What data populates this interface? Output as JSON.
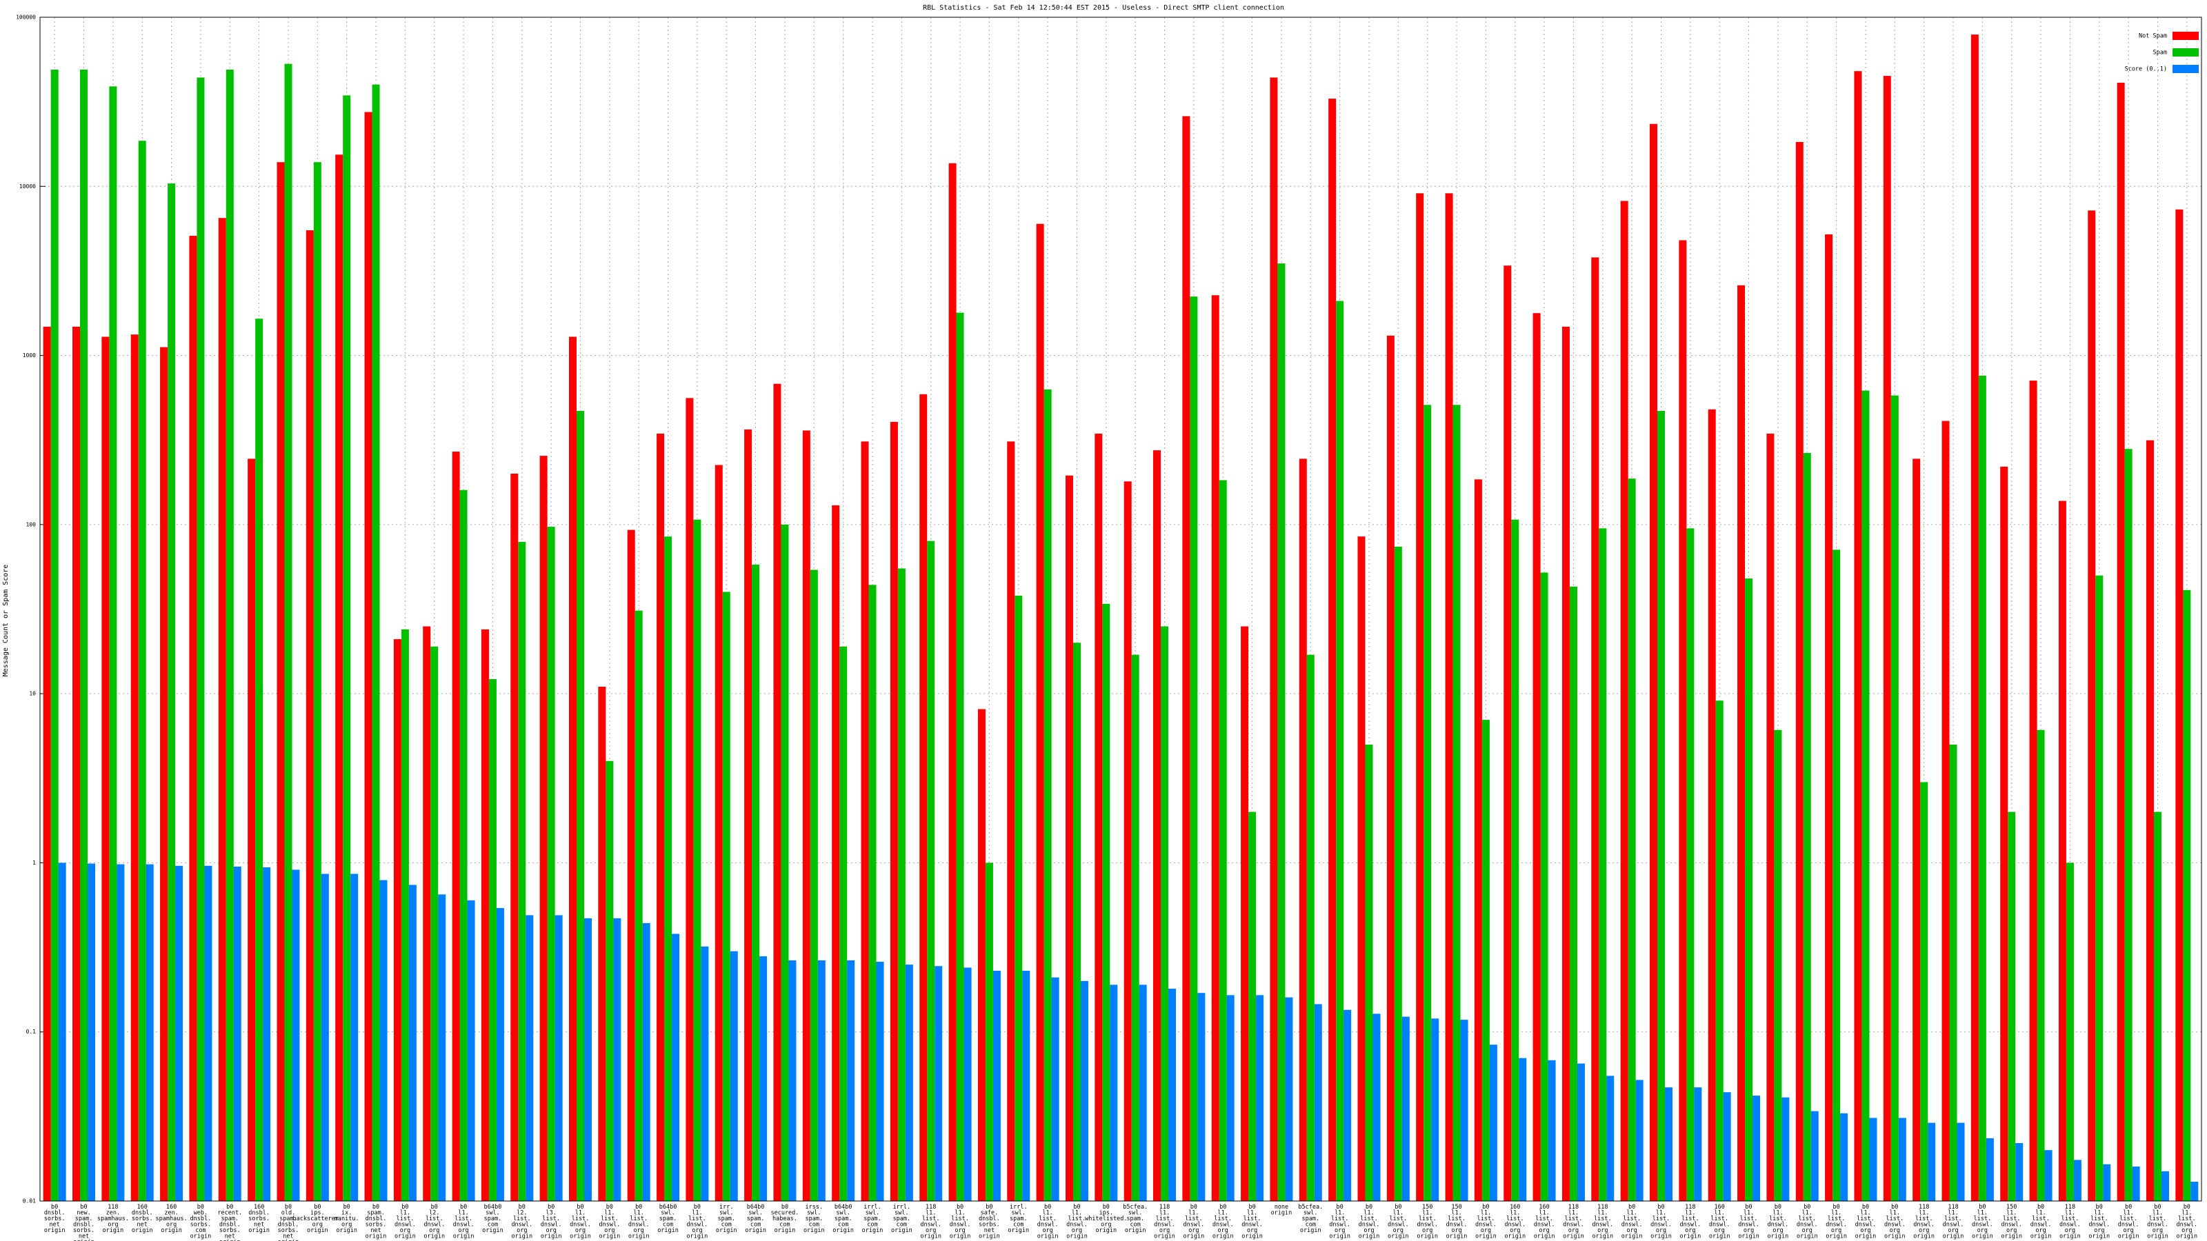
{
  "chart_data": {
    "type": "bar",
    "title": "RBL Statistics - Sat Feb 14 12:50:44 EST 2015 - Useless - Direct SMTP client connection",
    "y_label": "Message Count or Spam Score",
    "log_scale": true,
    "grid": true,
    "legend": "top-right",
    "ylim": [
      0.01,
      100000
    ],
    "yticks": [
      0.01,
      0.1,
      1,
      10,
      100,
      1000,
      10000,
      100000
    ],
    "categories": [
      "b0\ndnsbl.\nsorbs.\nnet\norigin",
      "b0\nnew.\nspam.\ndnsbl.\nsorbs.\nnet\norigin",
      "118\nzen.\nspamhaus.\norg\norigin",
      "160\ndnsbl.\nsorbs.\nnet\norigin",
      "160\nzen.\nspamhaus.\norg\norigin",
      "b0\nweb.\ndnsbl.\nsorbs.\ncom\norigin",
      "b0\nrecent.\nspam.\ndnsbl.\nsorbs.\nnet\norigin",
      "160\ndnsbl.\nsorbs.\nnet\norigin",
      "b0\nold.\nspam.\ndnsbl.\nsorbs.\nnet\norigin",
      "b0\nips.\nbackscatterer.\norg\norigin",
      "b0\nix.\nmanitu.\norg\norigin",
      "b0\nspam.\ndnsbl.\nsorbs.\nnet\norigin",
      "b0\nl1.\nlist.\ndnswl.\norg\norigin",
      "b0\nl2.\nlist.\ndnswl.\norg\norigin",
      "b0\nl1.\nlist.\ndnswl.\norg\norigin",
      "b64b0\nswl.\nspam.\ncom\norigin",
      "b0\nl2.\nlist.\ndnswl.\norg\norigin",
      "b0\nl3.\nlist.\ndnswl.\norg\norigin",
      "b0\nl1.\nlist.\ndnswl.\norg\norigin",
      "b0\nl1.\nlist.\ndnswl.\norg\norigin",
      "b0\nl1.\nlist.\ndnswl.\norg\norigin",
      "b64b0\nswl.\nspam.\ncom\norigin",
      "b0\nl1.\nlist.\ndnswl.\norg\norigin",
      "irr.\nswl.\nspam.\ncom\norigin",
      "b64b0\nswl.\nspam.\ncom\norigin",
      "b0\nsecured.\nhabeas.\ncom\norigin",
      "irss.\nswl.\nspam.\ncom\norigin",
      "b64b0\nswl.\nspam.\ncom\norigin",
      "irrl.\nswl.\nspam.\ncom\norigin",
      "irrl.\nswl.\nspam.\ncom\norigin",
      "118\nl1.\nlist.\ndnswl.\norg\norigin",
      "b0\nl1.\nlist.\ndnswl.\norg\norigin",
      "b0\nsafe.\ndnsbl.\nsorbs.\nnet\norigin",
      "irrl.\nswl.\nspam.\ncom\norigin",
      "b0\nl1.\nlist.\ndnswl.\norg\norigin",
      "b0\nl1.\nlist.\ndnswl.\norg\norigin",
      "b0\nips.\nwhitelisted.\norg\norigin",
      "b5cfea.\nswl.\nspam.\ncom\norigin",
      "118\nl1.\nlist.\ndnswl.\norg\norigin",
      "b0\nl1.\nlist.\ndnswl.\norg\norigin",
      "b0\nl1.\nlist.\ndnswl.\norg\norigin",
      "b0\nl1.\nlist.\ndnswl.\norg\norigin",
      "none\norigin",
      "b5cfea.\nswl.\nspam.\ncom\norigin",
      "b0\nl1.\nlist.\ndnswl.\norg\norigin",
      "b0\nl1.\nlist.\ndnswl.\norg\norigin",
      "b0\nl1.\nlist.\ndnswl.\norg\norigin",
      "150\nl1.\nlist.\ndnswl.\norg\norigin",
      "150\nl1.\nlist.\ndnswl.\norg\norigin",
      "b0\nl1.\nlist.\ndnswl.\norg\norigin",
      "160\nl1.\nlist.\ndnswl.\norg\norigin",
      "160\nl1.\nlist.\ndnswl.\norg\norigin",
      "118\nl1.\nlist.\ndnswl.\norg\norigin",
      "118\nl1.\nlist.\ndnswl.\norg\norigin",
      "b0\nl1.\nlist.\ndnswl.\norg\norigin",
      "b0\nl1.\nlist.\ndnswl.\norg\norigin",
      "118\nl1.\nlist.\ndnswl.\norg\norigin",
      "160\nl1.\nlist.\ndnswl.\norg\norigin",
      "b0\nl1.\nlist.\ndnswl.\norg\norigin",
      "b0\nl1.\nlist.\ndnswl.\norg\norigin",
      "b0\nl1.\nlist.\ndnswl.\norg\norigin",
      "b0\nl1.\nlist.\ndnswl.\norg\norigin",
      "b0\nl1.\nlist.\ndnswl.\norg\norigin",
      "b0\nl1.\nlist.\ndnswl.\norg\norigin",
      "118\nl1.\nlist.\ndnswl.\norg\norigin",
      "118\nl1.\nlist.\ndnswl.\norg\norigin",
      "b0\nl1.\nlist.\ndnswl.\norg\norigin",
      "150\nl1.\nlist.\ndnswl.\norg\norigin",
      "b0\nl1.\nlist.\ndnswl.\norg\norigin",
      "118\nl1.\nlist.\ndnswl.\norg\norigin",
      "b0\nl1.\nlist.\ndnswl.\norg\norigin",
      "b0\nl1.\nlist.\ndnswl.\norg\norigin",
      "b0\nl1.\nlist.\ndnswl.\norg\norigin",
      "b0\nl1.\nlist.\ndnswl.\norg\norigin"
    ],
    "series": [
      {
        "name": "Not Spam",
        "color": "#ff0000",
        "values": [
          1480,
          1480,
          1290,
          1330,
          1120,
          5100,
          6500,
          245,
          13900,
          5500,
          15400,
          27500,
          21,
          25,
          270,
          24,
          200,
          255,
          1290,
          11,
          93,
          345,
          560,
          225,
          365,
          680,
          360,
          130,
          310,
          405,
          590,
          13700,
          8.1,
          310,
          6000,
          195,
          345,
          180,
          275,
          26000,
          2270,
          25,
          44000,
          245,
          33000,
          85,
          1310,
          9100,
          9100,
          185,
          3400,
          1780,
          1480,
          3800,
          8200,
          23400,
          4800,
          480,
          2600,
          345,
          18300,
          5200,
          48000,
          45000,
          245,
          410,
          79000,
          220,
          710,
          138,
          7200,
          41000,
          315,
          7300
        ]
      },
      {
        "name": "Spam",
        "color": "#00c000",
        "values": [
          49000,
          49000,
          39000,
          18600,
          10400,
          44000,
          49000,
          1650,
          53000,
          13900,
          34500,
          40000,
          24,
          19,
          160,
          12.2,
          79,
          97,
          470,
          4,
          31,
          85,
          107,
          40,
          58,
          100,
          54,
          19,
          44,
          55,
          80,
          1790,
          1,
          38,
          630,
          20,
          34,
          17,
          25,
          2230,
          183,
          2,
          3500,
          17,
          2100,
          5,
          74,
          510,
          510,
          7,
          107,
          52,
          43,
          95,
          187,
          470,
          95,
          9.1,
          48,
          6.1,
          265,
          71,
          620,
          580,
          3,
          5,
          760,
          2,
          6.1,
          1,
          50,
          280,
          2,
          41
        ]
      },
      {
        "name": "Score (0..1)",
        "color": "#0080ff",
        "values": [
          1,
          0.99,
          0.98,
          0.98,
          0.96,
          0.96,
          0.95,
          0.94,
          0.91,
          0.86,
          0.86,
          0.79,
          0.74,
          0.65,
          0.6,
          0.54,
          0.49,
          0.49,
          0.47,
          0.47,
          0.44,
          0.38,
          0.32,
          0.3,
          0.28,
          0.265,
          0.265,
          0.265,
          0.26,
          0.25,
          0.245,
          0.24,
          0.23,
          0.23,
          0.21,
          0.2,
          0.19,
          0.19,
          0.18,
          0.17,
          0.165,
          0.165,
          0.16,
          0.146,
          0.135,
          0.128,
          0.123,
          0.12,
          0.118,
          0.084,
          0.07,
          0.068,
          0.065,
          0.055,
          0.052,
          0.047,
          0.047,
          0.044,
          0.042,
          0.041,
          0.034,
          0.033,
          0.031,
          0.031,
          0.029,
          0.029,
          0.0235,
          0.022,
          0.02,
          0.0175,
          0.0165,
          0.016,
          0.015,
          0.013
        ]
      }
    ]
  }
}
